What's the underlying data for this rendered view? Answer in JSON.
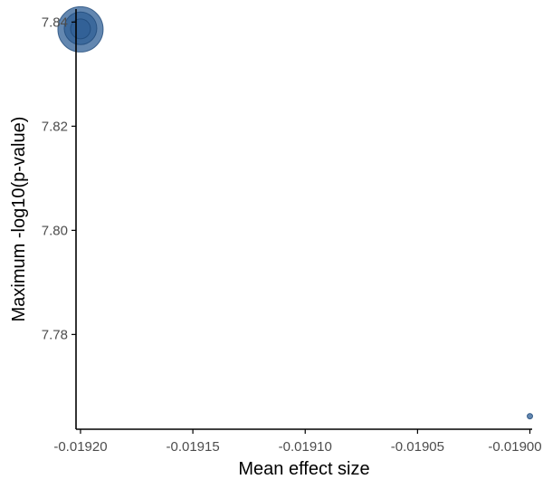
{
  "chart_data": {
    "type": "scatter",
    "title": "",
    "xlabel": "Mean effect size",
    "ylabel": "Maximum -log10(p-value)",
    "xlim": [
      -0.019202,
      -0.018999
    ],
    "ylim": [
      7.7618,
      7.8425
    ],
    "x_ticks": [
      -0.0192,
      -0.01915,
      -0.0191,
      -0.01905,
      -0.019
    ],
    "x_tick_labels": [
      "-0.01920",
      "-0.01915",
      "-0.01910",
      "-0.01905",
      "-0.01900"
    ],
    "y_ticks": [
      7.78,
      7.8,
      7.82,
      7.84
    ],
    "y_tick_labels": [
      "7.78",
      "7.80",
      "7.82",
      "7.84"
    ],
    "grid": false,
    "legend": "none",
    "colors": {
      "point_fill": "#2f5f96",
      "point_stroke": "#1f4a7a",
      "axis": "#000000",
      "tick_label": "#4d4d4d"
    },
    "points": [
      {
        "x": -0.0192,
        "y": 7.8386,
        "size": 25
      },
      {
        "x": -0.0192,
        "y": 7.8388,
        "size": 18
      },
      {
        "x": -0.0192,
        "y": 7.8387,
        "size": 11
      },
      {
        "x": -0.019,
        "y": 7.7643,
        "size": 3
      }
    ]
  }
}
